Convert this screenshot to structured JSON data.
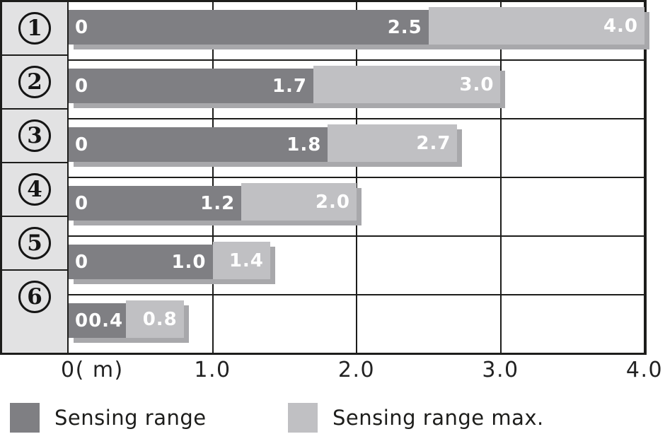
{
  "chart_data": {
    "type": "bar",
    "orientation": "horizontal",
    "grid": true,
    "legend_position": "bottom",
    "x_axis": {
      "max": 4.0,
      "ticks": [
        {
          "label": "0( m)",
          "value": 0
        },
        {
          "label": "1.0",
          "value": 1.0
        },
        {
          "label": "2.0",
          "value": 2.0
        },
        {
          "label": "3.0",
          "value": 3.0
        },
        {
          "label": "4.0",
          "value": 4.0
        }
      ]
    },
    "rows": [
      {
        "num": "1",
        "start_label": "0",
        "sensing_range": 2.5,
        "sensing_range_label": "2.5",
        "sensing_range_max": 4.0,
        "sensing_range_max_label": "4.0"
      },
      {
        "num": "2",
        "start_label": "0",
        "sensing_range": 1.7,
        "sensing_range_label": "1.7",
        "sensing_range_max": 3.0,
        "sensing_range_max_label": "3.0"
      },
      {
        "num": "3",
        "start_label": "0",
        "sensing_range": 1.8,
        "sensing_range_label": "1.8",
        "sensing_range_max": 2.7,
        "sensing_range_max_label": "2.7"
      },
      {
        "num": "4",
        "start_label": "0",
        "sensing_range": 1.2,
        "sensing_range_label": "1.2",
        "sensing_range_max": 2.0,
        "sensing_range_max_label": "2.0"
      },
      {
        "num": "5",
        "start_label": "0",
        "sensing_range": 1.0,
        "sensing_range_label": "1.0",
        "sensing_range_max": 1.4,
        "sensing_range_max_label": "1.4"
      },
      {
        "num": "6",
        "start_label": "0",
        "sensing_range": 0.4,
        "sensing_range_label": "0.4",
        "sensing_range_max": 0.8,
        "sensing_range_max_label": "0.8"
      }
    ],
    "legend": [
      {
        "label": "Sensing range",
        "series": "sensing_range"
      },
      {
        "label": "Sensing range max.",
        "series": "sensing_range_max"
      }
    ]
  },
  "colors": {
    "sensing_range": "#7f7f83",
    "sensing_range_max": "#c0c0c3",
    "bar_shadow": "#a8a8ab",
    "row_label_bg": "#e2e2e3",
    "line": "#1d1d1b",
    "bar_value_text": "#ffffff"
  }
}
